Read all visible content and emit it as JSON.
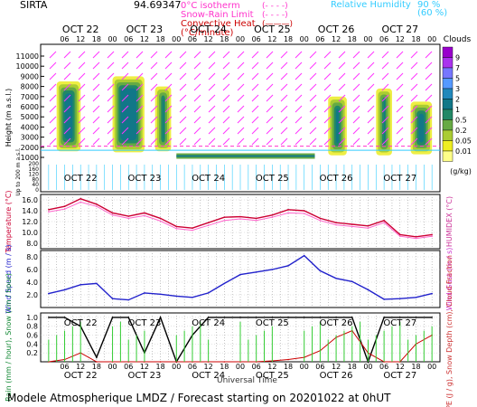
{
  "header": {
    "site": "SIRTA",
    "coords": "94.69347",
    "legend_left": [
      {
        "label": "0°C isotherm",
        "sym": "(- - - -)",
        "color": "#ff33cc"
      },
      {
        "label": "Snow-Rain Limit",
        "sym": "(- - - -)",
        "color": "#ff33cc"
      },
      {
        "label": "Convective Heat.",
        "sym": "(———)",
        "color": "#cc0000"
      },
      {
        "label": "(°C/minute)",
        "sym": "",
        "color": "#cc0000"
      }
    ],
    "legend_right": [
      {
        "label": "Relative Humidity",
        "value": "90 %",
        "color": "#33ccff"
      },
      {
        "label": "",
        "value": "(60 %)",
        "color": "#33ccff"
      }
    ]
  },
  "footer": {
    "title": "Modele Atmospherique LMDZ / Forecast starting on 20201022 at 0hUT",
    "xaxis": "Universal Time"
  },
  "days": [
    "OCT 22",
    "OCT 23",
    "OCT 24",
    "OCT 25",
    "OCT 26",
    "OCT 27"
  ],
  "hour_ticks": [
    "06",
    "12",
    "18",
    "00"
  ],
  "colorbar": {
    "title": "Clouds",
    "unit": "(g/kg)",
    "levels": [
      "9",
      "7",
      "5",
      "3",
      "2",
      "1",
      "0.5",
      "0.2",
      "0.05",
      "0.01"
    ],
    "colors": [
      "#9900cc",
      "#aa33ee",
      "#7777ff",
      "#5599ff",
      "#2288bb",
      "#117788",
      "#228866",
      "#66aa44",
      "#aacc33",
      "#eeee22",
      "#ffff88"
    ]
  },
  "chart_data": [
    {
      "type": "heatmap",
      "title": "Clouds",
      "ylabel": "Height (m a.s.l.)",
      "ylabel2": "Up to 200 m a.s.l.",
      "yticks": [
        11000,
        10000,
        9000,
        8000,
        7000,
        6000,
        5000,
        4000,
        3000,
        2000,
        1000
      ],
      "yticks_low": [
        200,
        180,
        160,
        140,
        120,
        100,
        80,
        60,
        40,
        20,
        0
      ],
      "x": [
        "OCT 22",
        "OCT 23",
        "OCT 24",
        "OCT 25",
        "OCT 26",
        "OCT 27"
      ],
      "cloud_blocks": [
        {
          "start_h": 3,
          "end_h": 12,
          "base_m": 1600,
          "top_m": 8500
        },
        {
          "start_h": 24,
          "end_h": 36,
          "base_m": 1500,
          "top_m": 9000
        },
        {
          "start_h": 40,
          "end_h": 46,
          "base_m": 1600,
          "top_m": 8000
        },
        {
          "start_h": 105,
          "end_h": 112,
          "base_m": 1200,
          "top_m": 7000
        },
        {
          "start_h": 123,
          "end_h": 129,
          "base_m": 1200,
          "top_m": 7800
        },
        {
          "start_h": 136,
          "end_h": 144,
          "base_m": 1300,
          "top_m": 6500
        }
      ]
    },
    {
      "type": "line",
      "ylabel": "Temperature (°C)",
      "ylabel2": "HUMIDEX (°C)",
      "yticks": [
        16,
        14,
        12,
        10,
        8
      ],
      "ylim": [
        7,
        17
      ],
      "x_hours": [
        0,
        6,
        12,
        18,
        24,
        30,
        36,
        42,
        48,
        54,
        60,
        66,
        72,
        78,
        84,
        90,
        96,
        102,
        108,
        114,
        120,
        126,
        132,
        138,
        144
      ],
      "series": [
        {
          "values": [
            14.2,
            14.8,
            16.2,
            15.2,
            13.6,
            13.0,
            13.6,
            12.6,
            11.1,
            10.8,
            11.8,
            12.8,
            12.9,
            12.6,
            13.2,
            14.2,
            14.0,
            12.6,
            11.8,
            11.5,
            11.2,
            12.2,
            9.6,
            9.2,
            9.6
          ],
          "color": "#cc0033"
        },
        {
          "values": [
            13.8,
            14.3,
            15.6,
            14.8,
            13.2,
            12.6,
            13.1,
            12.1,
            10.7,
            10.4,
            11.3,
            12.2,
            12.5,
            12.2,
            12.8,
            13.6,
            13.5,
            12.2,
            11.4,
            11.1,
            10.8,
            11.8,
            9.3,
            8.9,
            9.3
          ],
          "color": "#ff66cc"
        }
      ]
    },
    {
      "type": "line",
      "ylabel": "Wind Speed (m / s)",
      "ylabel2": "Wind Gust (m / s)",
      "yticks": [
        8,
        6,
        4,
        2
      ],
      "ylim": [
        0,
        9
      ],
      "x_hours": [
        0,
        6,
        12,
        18,
        24,
        30,
        36,
        42,
        48,
        54,
        60,
        66,
        72,
        78,
        84,
        90,
        96,
        102,
        108,
        114,
        120,
        126,
        132,
        138,
        144
      ],
      "series": [
        {
          "values": [
            2.2,
            2.8,
            3.6,
            3.8,
            1.4,
            1.2,
            2.3,
            2.1,
            1.8,
            1.6,
            2.3,
            3.8,
            5.2,
            5.6,
            6.0,
            6.6,
            8.2,
            5.8,
            4.6,
            4.1,
            2.8,
            1.3,
            1.4,
            1.6,
            2.2
          ],
          "color": "#2222cc"
        }
      ]
    },
    {
      "type": "line",
      "ylabel": "Rain (mm / hour), Snow (cm / hour)",
      "ylabel2": "CAPE (J / g), Snow Depth (cm), Cloud Fraction",
      "yticks": [
        1.0,
        0.8,
        0.6,
        0.4,
        0.2
      ],
      "ylim": [
        0,
        1.1
      ],
      "x_hours": [
        0,
        6,
        12,
        18,
        24,
        30,
        36,
        42,
        48,
        54,
        60,
        66,
        72,
        78,
        84,
        90,
        96,
        102,
        108,
        114,
        120,
        126,
        132,
        138,
        144
      ],
      "series": [
        {
          "name": "Cloud Fraction",
          "values": [
            1.0,
            1.0,
            0.8,
            0.1,
            1.0,
            1.0,
            0.2,
            1.0,
            0.0,
            0.6,
            1.0,
            1.0,
            1.0,
            1.0,
            1.0,
            1.0,
            1.0,
            1.0,
            1.0,
            1.0,
            0.0,
            1.0,
            1.0,
            1.0,
            1.0
          ],
          "color": "#000000"
        },
        {
          "name": "CAPE",
          "values": [
            0.0,
            0.05,
            0.2,
            0.0,
            0.0,
            0.0,
            0.0,
            0.0,
            0.0,
            0.0,
            0.0,
            0.0,
            0.0,
            0.0,
            0.02,
            0.05,
            0.1,
            0.25,
            0.55,
            0.7,
            0.2,
            0.0,
            0.0,
            0.4,
            0.6
          ],
          "color": "#cc0000"
        }
      ]
    }
  ]
}
